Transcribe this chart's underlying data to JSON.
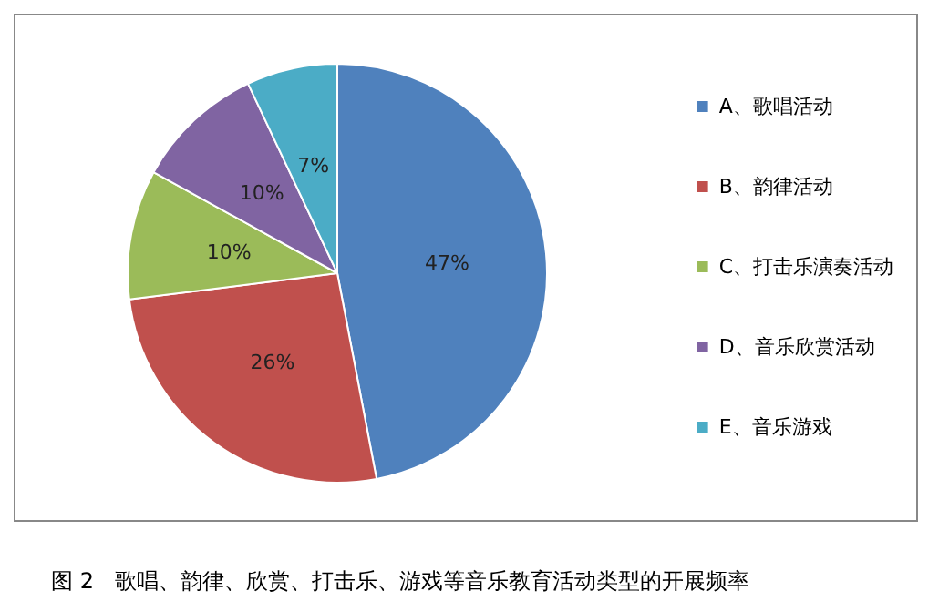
{
  "chart_data": {
    "type": "pie",
    "categories": [
      "A、歌唱活动",
      "B、韵律活动",
      "C、打击乐演奏活动",
      "D、音乐欣赏活动",
      "E、音乐游戏"
    ],
    "values": [
      47,
      26,
      10,
      10,
      7
    ],
    "colors": [
      "#4f81bd",
      "#c0504d",
      "#9bbb59",
      "#8064a2",
      "#4bacc6"
    ],
    "value_labels": [
      "47%",
      "26%",
      "10%",
      "10%",
      "7%"
    ],
    "legend": "right",
    "annotations": [
      "图 2   歌唱、韵律、欣赏、打击乐、游戏等音乐教育活动类型的开展频率"
    ]
  }
}
